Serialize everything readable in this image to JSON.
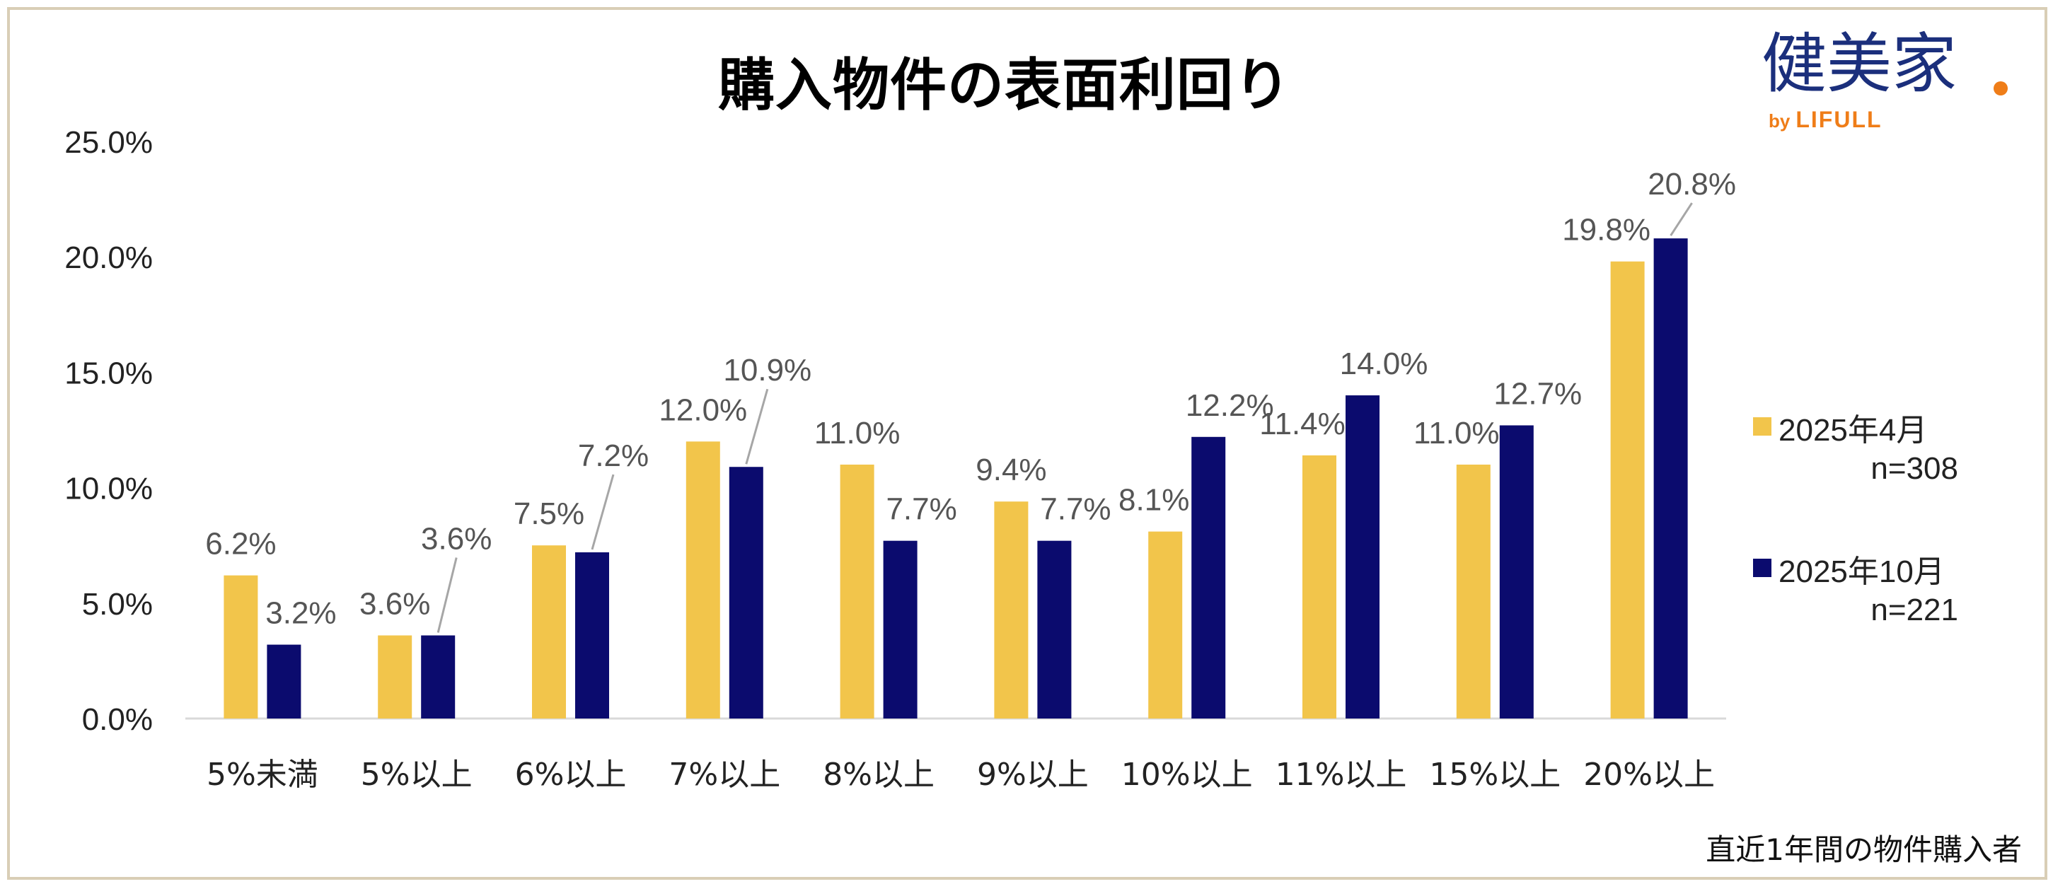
{
  "chart_data": {
    "type": "bar",
    "title": "購入物件の表面利回り",
    "categories": [
      "5%未満",
      "5%以上",
      "6%以上",
      "7%以上",
      "8%以上",
      "9%以上",
      "10%以上",
      "11%以上",
      "15%以上",
      "20%以上"
    ],
    "series": [
      {
        "name": "2025年4月",
        "n_label": "n=308",
        "color": "#f2c54b",
        "values": [
          6.2,
          3.6,
          7.5,
          12.0,
          11.0,
          9.4,
          8.1,
          11.4,
          11.0,
          19.8
        ],
        "labels": [
          "6.2%",
          "3.6%",
          "7.5%",
          "12.0%",
          "11.0%",
          "9.4%",
          "8.1%",
          "11.4%",
          "11.0%",
          "19.8%"
        ]
      },
      {
        "name": "2025年10月",
        "n_label": "n=221",
        "color": "#0b0b6e",
        "values": [
          3.2,
          3.6,
          7.2,
          10.9,
          7.7,
          7.7,
          12.2,
          14.0,
          12.7,
          20.8
        ],
        "labels": [
          "3.2%",
          "3.6%",
          "7.2%",
          "10.9%",
          "7.7%",
          "7.7%",
          "12.2%",
          "14.0%",
          "12.7%",
          "20.8%"
        ]
      }
    ],
    "yticks": [
      "0.0%",
      "5.0%",
      "10.0%",
      "15.0%",
      "20.0%",
      "25.0%"
    ],
    "ylim": [
      0,
      25
    ],
    "xlabel": "",
    "ylabel": "",
    "legend_position": "right",
    "grid": false
  },
  "logo": {
    "text": "健美家",
    "by": "by",
    "brand": "LIFULL"
  },
  "footnote": "直近1年間の物件購入者",
  "colors": {
    "frame": "#d9ceb6",
    "axis": "#d9d9d9",
    "leader": "#a6a6a6",
    "label": "#555555",
    "logo_blue": "#1b2f7c",
    "logo_orange": "#ef7d18"
  }
}
